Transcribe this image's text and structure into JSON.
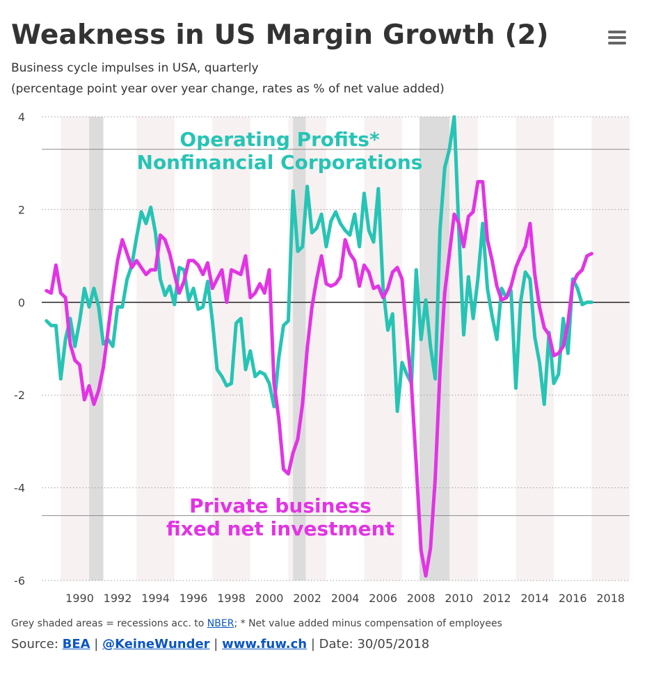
{
  "title": "Weakness in US Margin Growth (2)",
  "subtitle1": "Business cycle impulses in USA, quarterly",
  "subtitle2": "(percentage point year over year change, rates as % of net value added)",
  "menu_icon": "hamburger-menu-icon",
  "footer": {
    "note_prefix": "Grey shaded areas = recessions acc. to ",
    "note_link": "NBER",
    "note_suffix": "; * Net value added minus compensation of employees",
    "source_label": "Source: ",
    "source_bea": "BEA",
    "sep1": " | ",
    "source_twitter": "@KeineWunder",
    "sep2": " | ",
    "source_site": "www.fuw.ch",
    "sep3": " | ",
    "date_text": "Date: 30/05/2018"
  },
  "chart_data": {
    "type": "line",
    "xlim": [
      1988.0,
      2019.0
    ],
    "ylim": [
      -6,
      4
    ],
    "x_ticks": [
      1990,
      1992,
      1994,
      1996,
      1998,
      2000,
      2002,
      2004,
      2006,
      2008,
      2010,
      2012,
      2014,
      2016,
      2018
    ],
    "y_ticks": [
      4,
      2,
      0,
      -2,
      -4,
      -6
    ],
    "reference_lines": [
      3.3,
      -4.6
    ],
    "recessions": [
      [
        1990.5,
        1991.25
      ],
      [
        2001.25,
        2001.92
      ],
      [
        2007.92,
        2009.5
      ]
    ],
    "colors": {
      "recession": "#dcdcdc",
      "band": "#f8f1f1",
      "zero": "#333333",
      "grid": "#999999",
      "operating": "#26c4b5",
      "investment": "#e234e4"
    },
    "annotations": [
      {
        "lines": [
          "Operating Profits*",
          "Nonfinancial Corporations"
        ],
        "series": "operating"
      },
      {
        "lines": [
          "Private business",
          "fixed net investment"
        ],
        "series": "investment"
      }
    ],
    "series": [
      {
        "name": "Operating Profits* Nonfinancial Corporations",
        "key": "operating",
        "x": [
          1988.25,
          1988.5,
          1988.75,
          1989.0,
          1989.25,
          1989.5,
          1989.75,
          1990.0,
          1990.25,
          1990.5,
          1990.75,
          1991.0,
          1991.25,
          1991.5,
          1991.75,
          1992.0,
          1992.25,
          1992.5,
          1992.75,
          1993.0,
          1993.25,
          1993.5,
          1993.75,
          1994.0,
          1994.25,
          1994.5,
          1994.75,
          1995.0,
          1995.25,
          1995.5,
          1995.75,
          1996.0,
          1996.25,
          1996.5,
          1996.75,
          1997.0,
          1997.25,
          1997.5,
          1997.75,
          1998.0,
          1998.25,
          1998.5,
          1998.75,
          1999.0,
          1999.25,
          1999.5,
          1999.75,
          2000.0,
          2000.25,
          2000.5,
          2000.75,
          2001.0,
          2001.25,
          2001.5,
          2001.75,
          2002.0,
          2002.25,
          2002.5,
          2002.75,
          2003.0,
          2003.25,
          2003.5,
          2003.75,
          2004.0,
          2004.25,
          2004.5,
          2004.75,
          2005.0,
          2005.25,
          2005.5,
          2005.75,
          2006.0,
          2006.25,
          2006.5,
          2006.75,
          2007.0,
          2007.25,
          2007.5,
          2007.75,
          2008.0,
          2008.25,
          2008.5,
          2008.75,
          2009.0,
          2009.25,
          2009.5,
          2009.75,
          2010.0,
          2010.25,
          2010.5,
          2010.75,
          2011.0,
          2011.25,
          2011.5,
          2011.75,
          2012.0,
          2012.25,
          2012.5,
          2012.75,
          2013.0,
          2013.25,
          2013.5,
          2013.75,
          2014.0,
          2014.25,
          2014.5,
          2014.75,
          2015.0,
          2015.25,
          2015.5,
          2015.75,
          2016.0,
          2016.25,
          2016.5,
          2016.75,
          2017.0
        ],
        "values": [
          -0.4,
          -0.5,
          -0.5,
          -1.65,
          -0.8,
          -0.35,
          -0.95,
          -0.4,
          0.3,
          -0.1,
          0.3,
          -0.1,
          -0.9,
          -0.8,
          -0.95,
          -0.1,
          -0.1,
          0.5,
          0.8,
          1.4,
          1.95,
          1.7,
          2.05,
          1.5,
          0.5,
          0.15,
          0.35,
          -0.05,
          0.75,
          0.7,
          0.05,
          0.3,
          -0.15,
          -0.1,
          0.45,
          -0.4,
          -1.45,
          -1.6,
          -1.8,
          -1.75,
          -0.45,
          -0.35,
          -1.45,
          -1.05,
          -1.6,
          -1.5,
          -1.55,
          -1.75,
          -2.25,
          -1.2,
          -0.5,
          -0.4,
          2.4,
          1.1,
          1.2,
          2.5,
          1.5,
          1.6,
          1.9,
          1.2,
          1.75,
          1.95,
          1.7,
          1.55,
          1.45,
          1.9,
          1.2,
          2.35,
          1.55,
          1.3,
          2.45,
          0.3,
          -0.6,
          -0.25,
          -2.35,
          -1.3,
          -1.55,
          -1.75,
          0.7,
          -0.8,
          0.05,
          -0.95,
          -1.65,
          1.55,
          2.9,
          3.3,
          4.0,
          1.5,
          -0.7,
          0.55,
          -0.35,
          0.5,
          1.7,
          0.3,
          -0.3,
          -0.8,
          0.3,
          0.1,
          0.25,
          -1.85,
          0.0,
          0.65,
          0.5,
          -0.75,
          -1.3,
          -2.2,
          -0.65,
          -1.75,
          -1.55,
          -0.35,
          -1.1,
          0.5,
          0.3,
          -0.05,
          0.0,
          0.0
        ]
      },
      {
        "name": "Private business fixed net investment",
        "key": "investment",
        "x": [
          1988.25,
          1988.5,
          1988.75,
          1989.0,
          1989.25,
          1989.5,
          1989.75,
          1990.0,
          1990.25,
          1990.5,
          1990.75,
          1991.0,
          1991.25,
          1991.5,
          1991.75,
          1992.0,
          1992.25,
          1992.5,
          1992.75,
          1993.0,
          1993.25,
          1993.5,
          1993.75,
          1994.0,
          1994.25,
          1994.5,
          1994.75,
          1995.0,
          1995.25,
          1995.5,
          1995.75,
          1996.0,
          1996.25,
          1996.5,
          1996.75,
          1997.0,
          1997.25,
          1997.5,
          1997.75,
          1998.0,
          1998.25,
          1998.5,
          1998.75,
          1999.0,
          1999.25,
          1999.5,
          1999.75,
          2000.0,
          2000.25,
          2000.5,
          2000.75,
          2001.0,
          2001.25,
          2001.5,
          2001.75,
          2002.0,
          2002.25,
          2002.5,
          2002.75,
          2003.0,
          2003.25,
          2003.5,
          2003.75,
          2004.0,
          2004.25,
          2004.5,
          2004.75,
          2005.0,
          2005.25,
          2005.5,
          2005.75,
          2006.0,
          2006.25,
          2006.5,
          2006.75,
          2007.0,
          2007.25,
          2007.5,
          2007.75,
          2008.0,
          2008.25,
          2008.5,
          2008.75,
          2009.0,
          2009.25,
          2009.5,
          2009.75,
          2010.0,
          2010.25,
          2010.5,
          2010.75,
          2011.0,
          2011.25,
          2011.5,
          2011.75,
          2012.0,
          2012.25,
          2012.5,
          2012.75,
          2013.0,
          2013.25,
          2013.5,
          2013.75,
          2014.0,
          2014.25,
          2014.5,
          2014.75,
          2015.0,
          2015.25,
          2015.5,
          2015.75,
          2016.0,
          2016.25,
          2016.5,
          2016.75,
          2017.0
        ],
        "values": [
          0.25,
          0.2,
          0.8,
          0.2,
          0.1,
          -0.9,
          -1.25,
          -1.35,
          -2.1,
          -1.8,
          -2.2,
          -1.9,
          -1.4,
          -0.6,
          0.2,
          0.9,
          1.35,
          1.05,
          0.75,
          0.9,
          0.75,
          0.6,
          0.7,
          0.7,
          1.45,
          1.35,
          1.05,
          0.6,
          0.2,
          0.45,
          0.9,
          0.9,
          0.8,
          0.6,
          0.85,
          0.3,
          0.5,
          0.7,
          0.0,
          0.7,
          0.65,
          0.6,
          1.0,
          0.1,
          0.2,
          0.4,
          0.2,
          0.7,
          -1.75,
          -2.5,
          -3.6,
          -3.7,
          -3.25,
          -2.95,
          -2.2,
          -1.0,
          -0.1,
          0.5,
          1.0,
          0.4,
          0.35,
          0.4,
          0.55,
          1.35,
          1.05,
          0.9,
          0.35,
          0.8,
          0.65,
          0.3,
          0.35,
          0.1,
          0.3,
          0.65,
          0.75,
          0.5,
          -0.7,
          -1.8,
          -3.5,
          -5.35,
          -5.9,
          -5.3,
          -3.8,
          -1.5,
          0.2,
          1.05,
          1.9,
          1.7,
          1.2,
          1.85,
          1.95,
          2.6,
          2.6,
          1.35,
          0.9,
          0.35,
          0.05,
          0.1,
          0.35,
          0.75,
          1.0,
          1.2,
          1.7,
          0.6,
          -0.1,
          -0.55,
          -0.7,
          -1.15,
          -1.1,
          -0.95,
          -0.45,
          0.4,
          0.6,
          0.7,
          1.0,
          1.05
        ]
      }
    ]
  }
}
